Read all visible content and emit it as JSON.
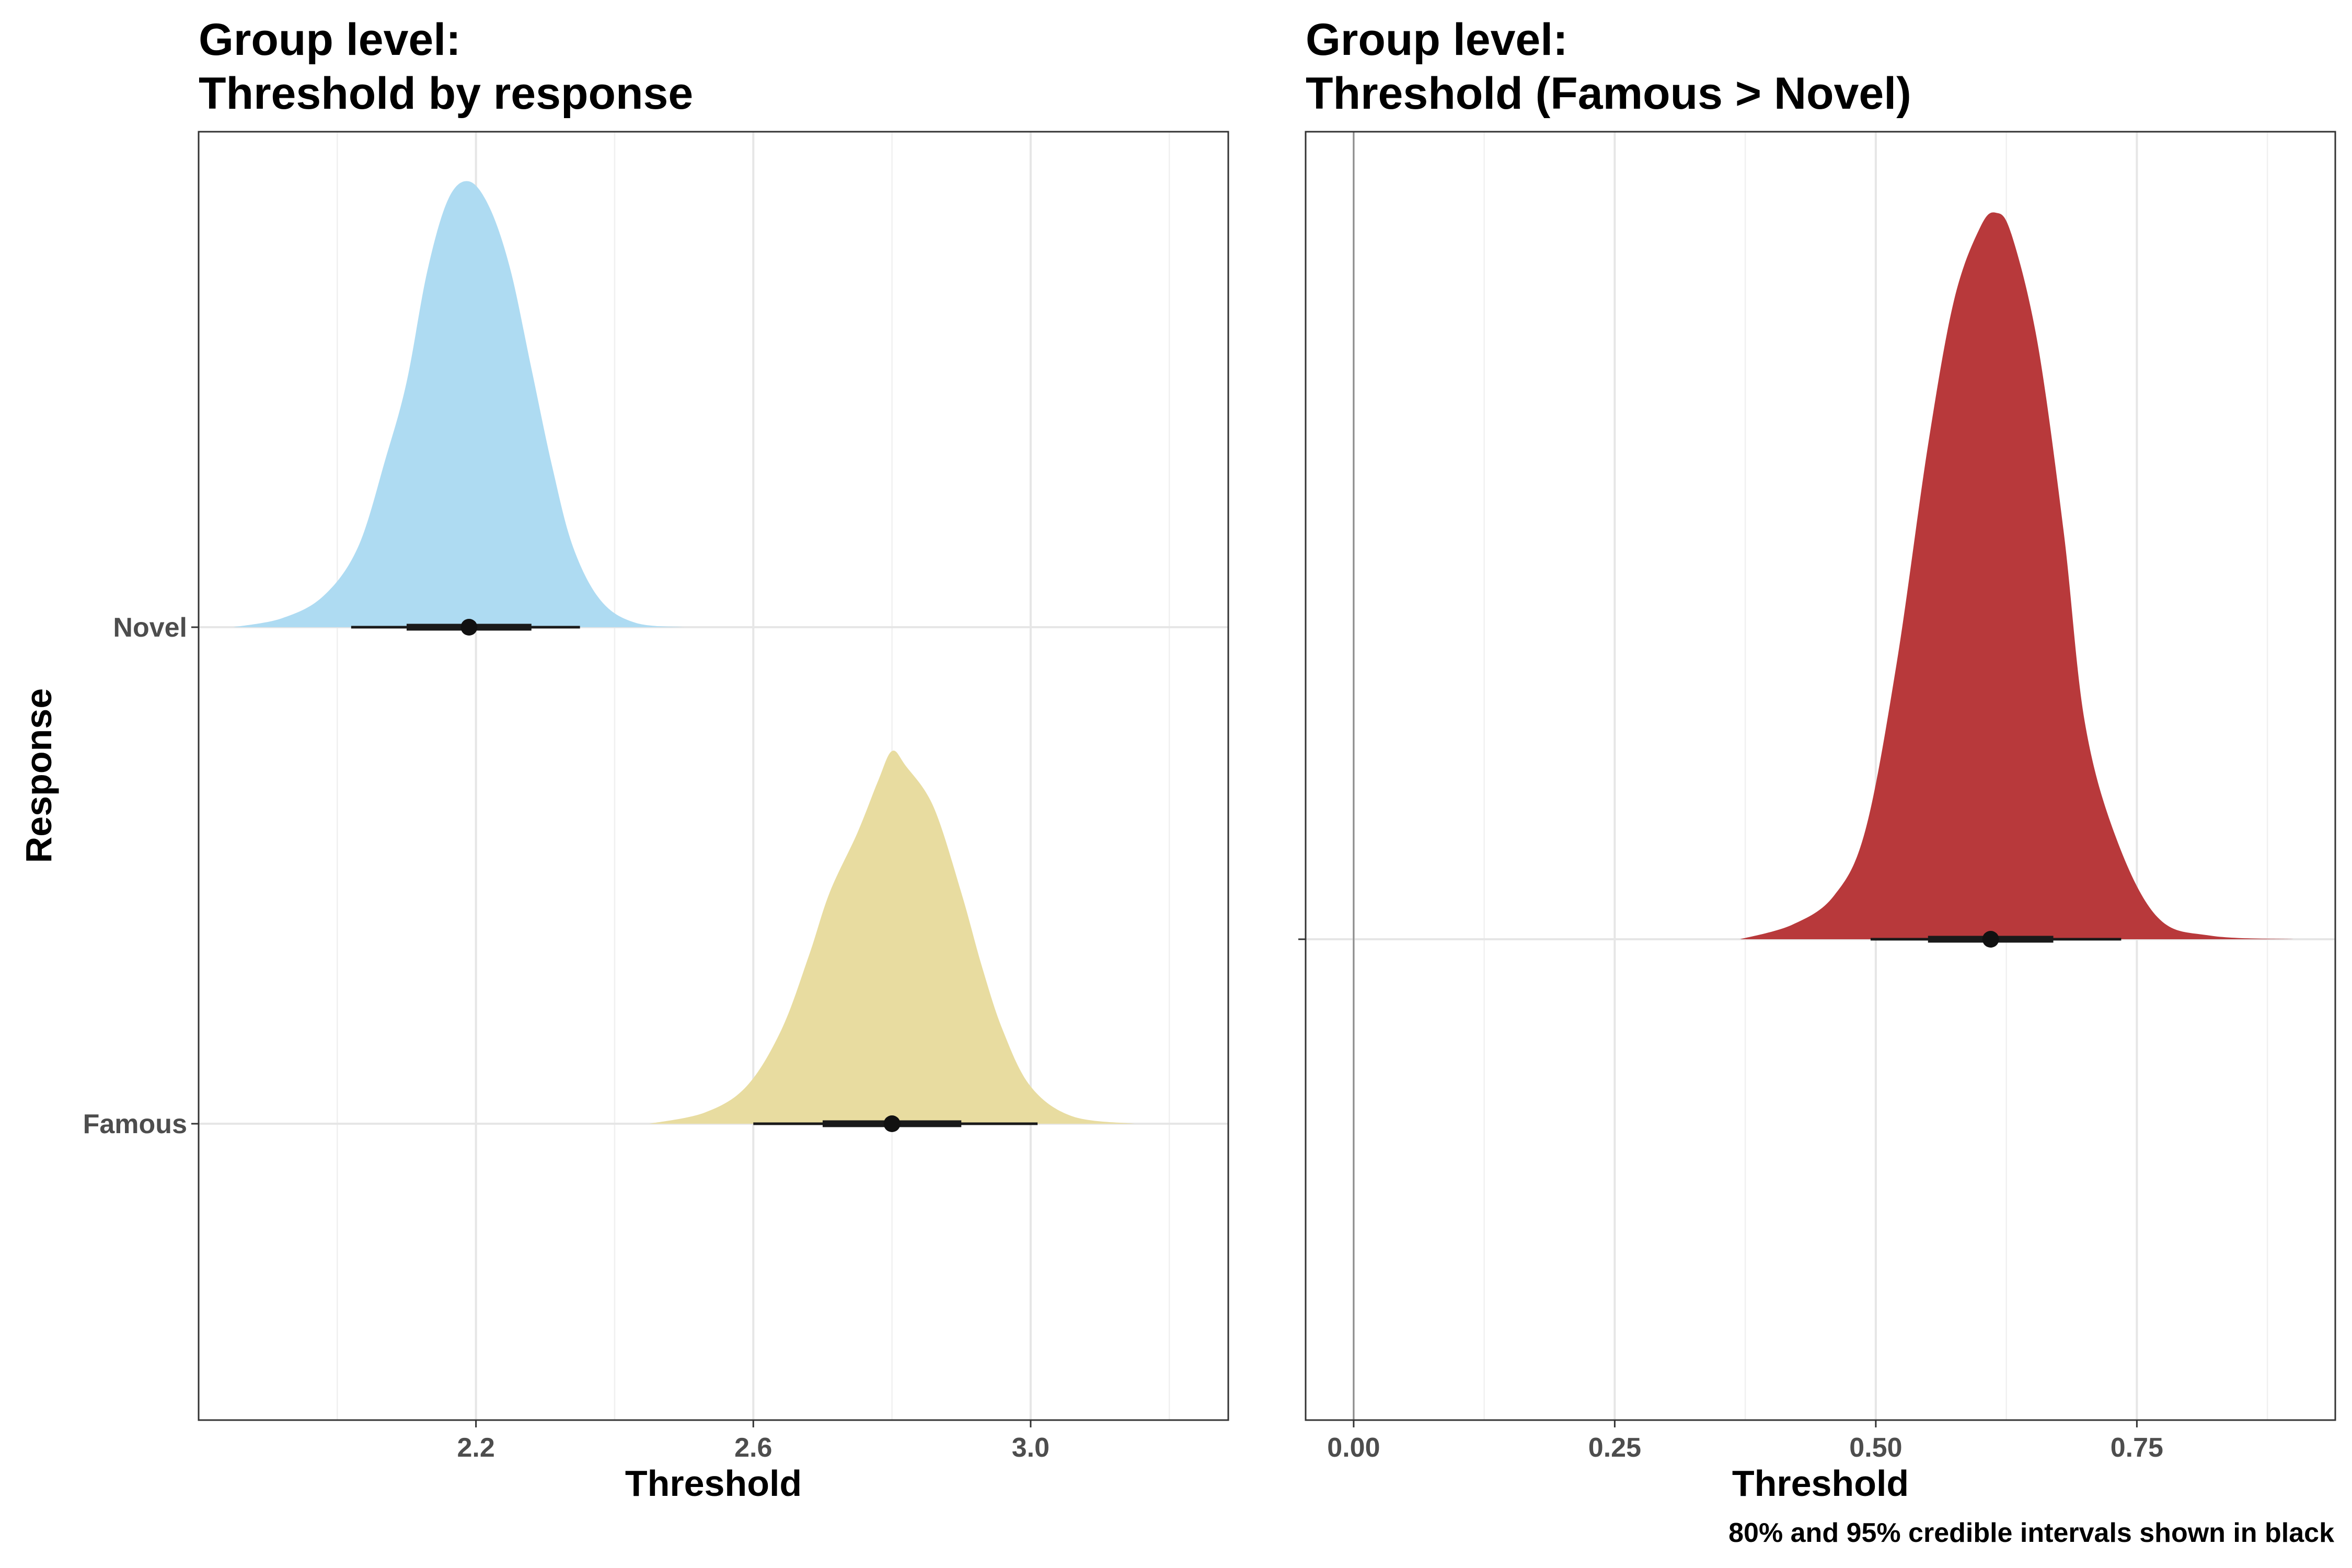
{
  "caption": "80% and 95% credible intervals shown in black",
  "chart_data": [
    {
      "type": "density",
      "title_lines": [
        "Group level:",
        "Threshold by response"
      ],
      "xlabel": "Threshold",
      "ylabel": "Response",
      "xlim": [
        1.8,
        3.285
      ],
      "x_ticks": [
        2.2,
        2.6,
        3.0
      ],
      "x_tick_labels": [
        "2.2",
        "2.6",
        "3.0"
      ],
      "x_minor_ticks": [
        2.0,
        2.4,
        2.8,
        3.2
      ],
      "grid": true,
      "categories": [
        "Novel",
        "Famous"
      ],
      "series": [
        {
          "name": "Novel",
          "color": "#aedbf2",
          "density": {
            "x": [
              1.85,
              1.92,
              1.98,
              2.03,
              2.07,
              2.1,
              2.13,
              2.16,
              2.19,
              2.22,
              2.25,
              2.28,
              2.31,
              2.34,
              2.38,
              2.43,
              2.5
            ],
            "y": [
              0.0,
              0.02,
              0.07,
              0.18,
              0.38,
              0.55,
              0.8,
              0.96,
              1.0,
              0.94,
              0.8,
              0.58,
              0.36,
              0.18,
              0.06,
              0.01,
              0.0
            ]
          },
          "median": 2.19,
          "ci80": [
            2.1,
            2.28
          ],
          "ci95": [
            2.02,
            2.35
          ]
        },
        {
          "name": "Famous",
          "color": "#e8dca0",
          "density": {
            "x": [
              2.45,
              2.53,
              2.59,
              2.64,
              2.68,
              2.71,
              2.75,
              2.78,
              2.8,
              2.82,
              2.86,
              2.9,
              2.93,
              2.96,
              3.0,
              3.06,
              3.15
            ],
            "y": [
              0.0,
              0.03,
              0.1,
              0.25,
              0.45,
              0.62,
              0.78,
              0.92,
              1.0,
              0.96,
              0.85,
              0.62,
              0.42,
              0.25,
              0.1,
              0.02,
              0.0
            ]
          },
          "median": 2.8,
          "ci80": [
            2.7,
            2.9
          ],
          "ci95": [
            2.6,
            3.01
          ]
        }
      ]
    },
    {
      "type": "density",
      "title_lines": [
        "Group level:",
        "Threshold (Famous > Novel)"
      ],
      "xlabel": "Threshold",
      "ylabel": "",
      "xlim": [
        -0.046,
        0.94
      ],
      "x_ticks": [
        0.0,
        0.25,
        0.5,
        0.75
      ],
      "x_tick_labels": [
        "0.00",
        "0.25",
        "0.50",
        "0.75"
      ],
      "x_minor_ticks": [
        0.125,
        0.375,
        0.625,
        0.875
      ],
      "grid": true,
      "reference_line_x": 0,
      "series": [
        {
          "name": "",
          "color": "#b8393b",
          "density": {
            "x": [
              0.37,
              0.42,
              0.46,
              0.49,
              0.52,
              0.55,
              0.575,
              0.6,
              0.615,
              0.63,
              0.655,
              0.68,
              0.7,
              0.73,
              0.77,
              0.82,
              0.9
            ],
            "y": [
              0.0,
              0.02,
              0.06,
              0.15,
              0.38,
              0.68,
              0.88,
              0.98,
              1.0,
              0.97,
              0.82,
              0.56,
              0.3,
              0.14,
              0.03,
              0.005,
              0.0
            ]
          },
          "median": 0.61,
          "ci80": [
            0.55,
            0.67
          ],
          "ci95": [
            0.495,
            0.735
          ]
        }
      ]
    }
  ]
}
